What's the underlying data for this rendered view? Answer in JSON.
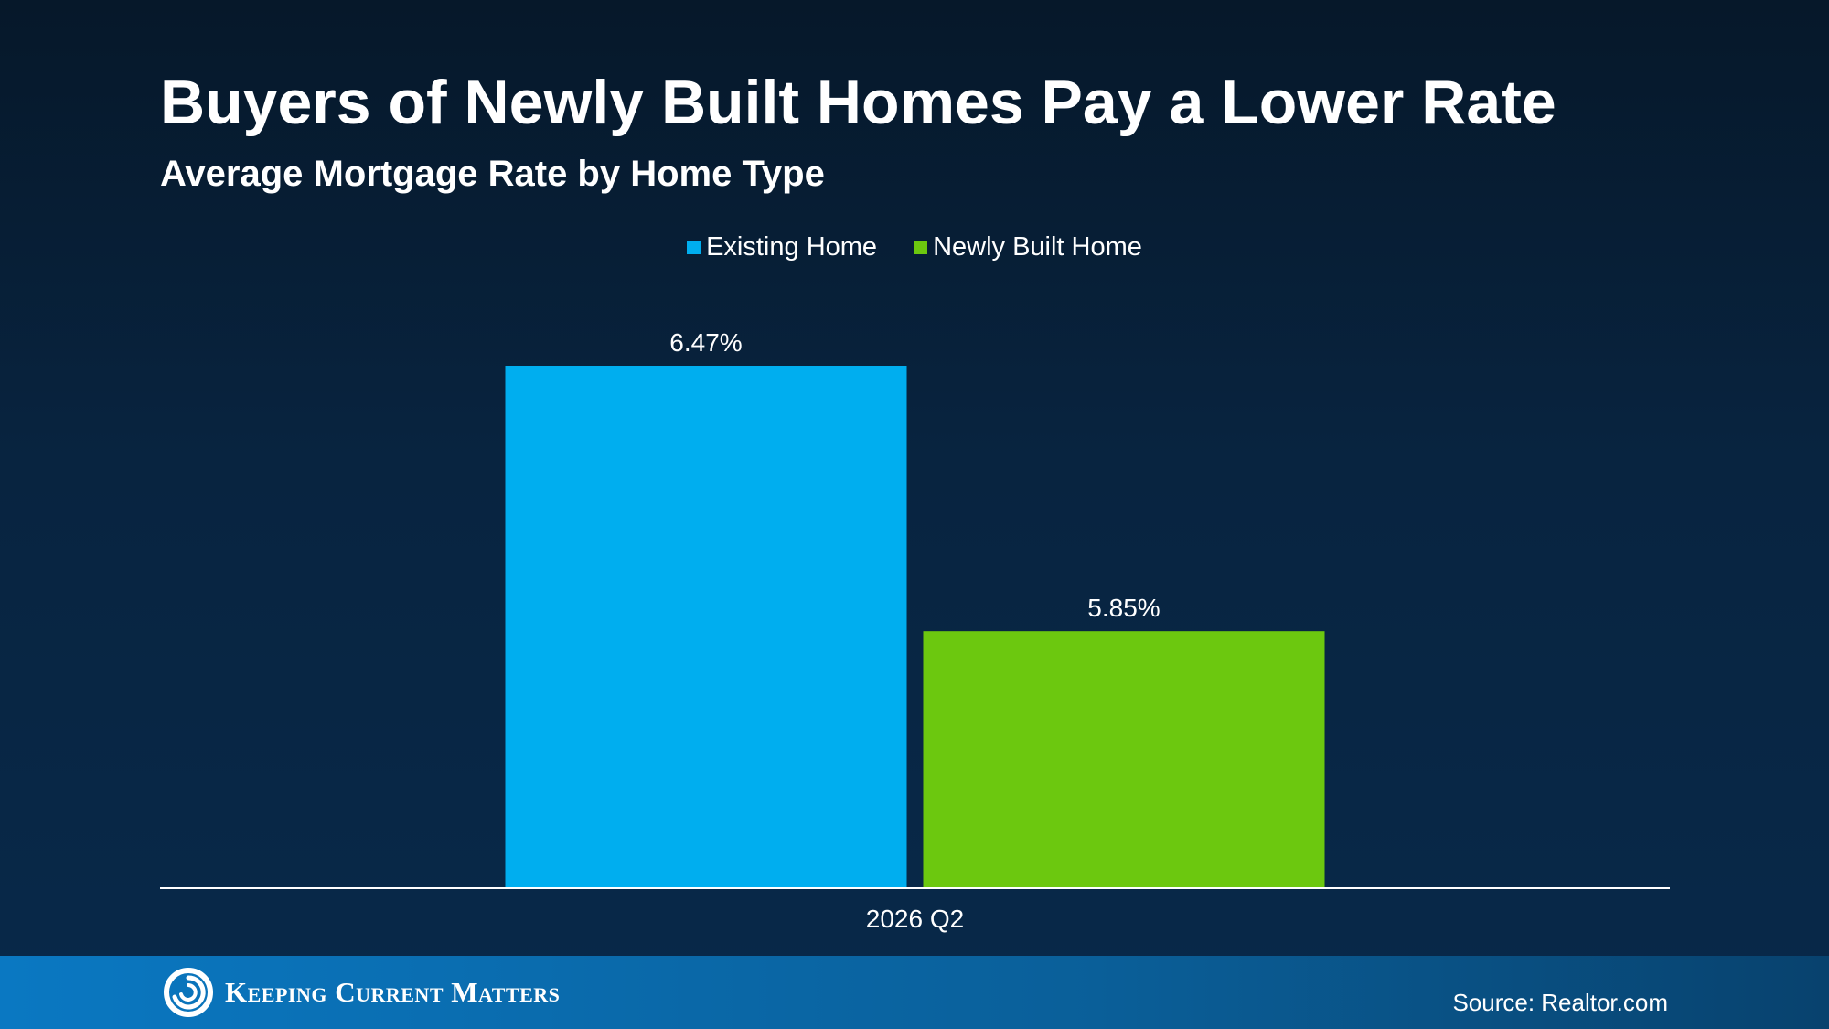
{
  "colors": {
    "existing": "#00aeef",
    "newly_built": "#6cc80f",
    "axis": "#ffffff"
  },
  "footer": {
    "logo_text": "Keeping Current Matters",
    "logo_icon": "swirl-logo-icon",
    "source": "Source: Realtor.com"
  },
  "chart_data": {
    "type": "bar",
    "title": "Buyers of Newly Built Homes Pay a Lower Rate",
    "subtitle": "Average Mortgage Rate by Home Type",
    "categories": [
      "2026 Q2"
    ],
    "series": [
      {
        "name": "Existing Home",
        "values": [
          6.47
        ],
        "labels": [
          "6.47%"
        ]
      },
      {
        "name": "Newly Built Home",
        "values": [
          5.85
        ],
        "labels": [
          "5.85%"
        ]
      }
    ],
    "ylim": [
      5.25,
      6.47
    ],
    "grid": false,
    "legend": "top-center",
    "xlabel": "",
    "ylabel": ""
  }
}
